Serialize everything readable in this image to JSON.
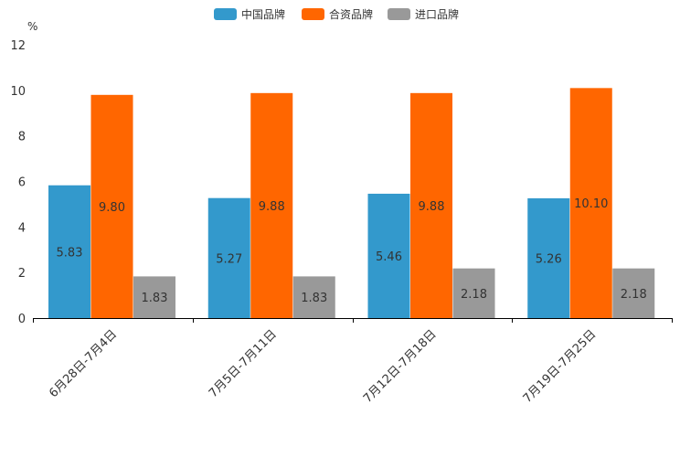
{
  "chart_data": {
    "type": "bar",
    "title": "",
    "xlabel": "",
    "ylabel": "%",
    "ylim": [
      0,
      12
    ],
    "yticks": [
      0,
      2,
      4,
      6,
      8,
      10,
      12
    ],
    "legend_position": "top-center",
    "grid": false,
    "categories": [
      "6月28日-7月4日",
      "7月5日-7月11日",
      "7月12日-7月18日",
      "7月19日-7月25日"
    ],
    "series": [
      {
        "name": "中国品牌",
        "color": "#3399cc",
        "values": [
          5.83,
          5.27,
          5.46,
          5.26
        ],
        "labels": [
          "5.83",
          "5.27",
          "5.46",
          "5.26"
        ]
      },
      {
        "name": "合资品牌",
        "color": "#ff6600",
        "values": [
          9.8,
          9.88,
          9.88,
          10.1
        ],
        "labels": [
          "9.80",
          "9.88",
          "9.88",
          "10.10"
        ]
      },
      {
        "name": "进口品牌",
        "color": "#999999",
        "values": [
          1.83,
          1.83,
          2.18,
          2.18
        ],
        "labels": [
          "1.83",
          "1.83",
          "2.18",
          "2.18"
        ]
      }
    ]
  }
}
